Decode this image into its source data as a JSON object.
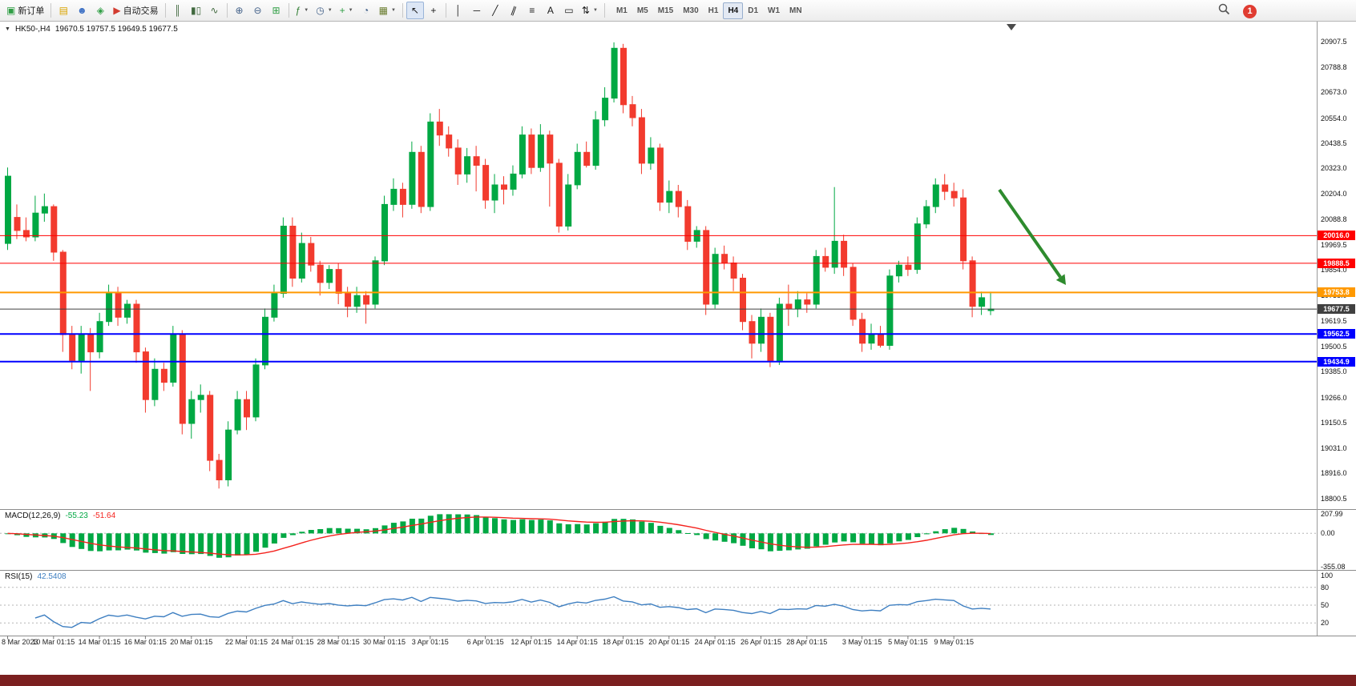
{
  "toolbar": {
    "notification_count": "1",
    "timeframes": [
      "M1",
      "M5",
      "M15",
      "M30",
      "H1",
      "H4",
      "D1",
      "W1",
      "MN"
    ],
    "active_timeframe": "H4",
    "buttons": [
      {
        "name": "new-order",
        "glyph": "▣",
        "color": "#2f9e44",
        "label": "新订单"
      },
      {
        "sep": true
      },
      {
        "name": "charts-profile",
        "glyph": "▤",
        "color": "#d9a400"
      },
      {
        "name": "market-watch",
        "glyph": "☻",
        "color": "#3b6fc4"
      },
      {
        "name": "navigator",
        "glyph": "◈",
        "color": "#2f9e44"
      },
      {
        "name": "autotrading",
        "glyph": "▶",
        "color": "#d23b2f",
        "label": "自动交易"
      },
      {
        "sep": true
      },
      {
        "name": "bar-chart",
        "glyph": "║",
        "color": "#41693f"
      },
      {
        "name": "candlestick-chart",
        "glyph": "▮▯",
        "color": "#41693f"
      },
      {
        "name": "line-chart",
        "glyph": "∿",
        "color": "#41693f"
      },
      {
        "sep": true
      },
      {
        "name": "zoom-in",
        "glyph": "⊕",
        "color": "#44628a"
      },
      {
        "name": "zoom-out",
        "glyph": "⊖",
        "color": "#44628a"
      },
      {
        "name": "tile-windows",
        "glyph": "⊞",
        "color": "#2f9e44"
      },
      {
        "sep": true
      },
      {
        "name": "indicators",
        "glyph": "ƒ",
        "color": "#2f7d32",
        "caret": true
      },
      {
        "name": "periods",
        "glyph": "◷",
        "color": "#44628a",
        "caret": true
      },
      {
        "name": "add-object",
        "glyph": "+",
        "color": "#2f9e44",
        "caret": true
      },
      {
        "name": "history-center",
        "glyph": "◔",
        "color": "#44628a"
      },
      {
        "name": "templates",
        "glyph": "▦",
        "color": "#6a7d2f",
        "caret": true
      },
      {
        "sep": true
      },
      {
        "name": "cursor",
        "glyph": "↖",
        "color": "#1a1a1a",
        "active": true
      },
      {
        "name": "crosshair",
        "glyph": "+",
        "color": "#1a1a1a"
      },
      {
        "sep": true
      },
      {
        "name": "vertical-line",
        "glyph": "│",
        "color": "#1a1a1a"
      },
      {
        "name": "horizontal-line",
        "glyph": "─",
        "color": "#1a1a1a"
      },
      {
        "name": "trendline",
        "glyph": "╱",
        "color": "#1a1a1a"
      },
      {
        "name": "equidistant-channel",
        "glyph": "∥",
        "color": "#1a1a1a",
        "rotate": 20
      },
      {
        "name": "fibonacci",
        "glyph": "≡",
        "color": "#1a1a1a"
      },
      {
        "name": "text",
        "glyph": "A",
        "color": "#1a1a1a"
      },
      {
        "name": "text-label",
        "glyph": "▭",
        "color": "#1a1a1a"
      },
      {
        "name": "arrows",
        "glyph": "⇅",
        "color": "#1a1a1a",
        "caret": true
      },
      {
        "sep": true
      }
    ]
  },
  "chart_data": [
    {
      "type": "candlestick",
      "title": "HK50-,H4",
      "collapse_glyph": "▼",
      "ohlc_text": "19670.5 19757.5 19649.5 19677.5",
      "ylim": [
        18770,
        20940
      ],
      "up_color": "#00a843",
      "down_color": "#f23b2e",
      "price_ticks": [
        "20907.5",
        "20788.8",
        "20673.0",
        "20554.0",
        "20438.5",
        "20323.0",
        "20204.0",
        "20088.8",
        "19969.5",
        "19854.0",
        "19738.0",
        "19619.5",
        "19500.5",
        "19385.0",
        "19266.0",
        "19150.5",
        "19031.0",
        "18916.0",
        "18800.5"
      ],
      "level_lines": [
        {
          "price": 20016.0,
          "label": "20016.0",
          "color": "#ff0000",
          "width": 1
        },
        {
          "price": 19888.5,
          "label": "19888.5",
          "color": "#ff0000",
          "width": 1
        },
        {
          "price": 19753.8,
          "label": "19753.8",
          "color": "#ff9900",
          "width": 2
        },
        {
          "price": 19677.5,
          "label": "19677.5",
          "color": "#404040",
          "width": 1,
          "current": true
        },
        {
          "price": 19562.5,
          "label": "19562.5",
          "color": "#0000ff",
          "width": 2
        },
        {
          "price": 19434.9,
          "label": "19434.9",
          "color": "#0000ff",
          "width": 2
        }
      ],
      "annotation_arrow": {
        "color": "#2e8b2e",
        "direction": "down-right"
      },
      "candles": [
        [
          19980,
          20330,
          19950,
          20290
        ],
        [
          20100,
          20160,
          20000,
          20040
        ],
        [
          20040,
          20100,
          19990,
          20010
        ],
        [
          20010,
          20200,
          19990,
          20120
        ],
        [
          20120,
          20210,
          20080,
          20150
        ],
        [
          20150,
          20160,
          19900,
          19940
        ],
        [
          19940,
          19950,
          19480,
          19560
        ],
        [
          19560,
          19600,
          19400,
          19440
        ],
        [
          19440,
          19600,
          19380,
          19560
        ],
        [
          19560,
          19590,
          19300,
          19480
        ],
        [
          19480,
          19660,
          19450,
          19620
        ],
        [
          19620,
          19790,
          19600,
          19750
        ],
        [
          19750,
          19780,
          19600,
          19640
        ],
        [
          19640,
          19720,
          19610,
          19700
        ],
        [
          19700,
          19720,
          19430,
          19480
        ],
        [
          19480,
          19500,
          19200,
          19260
        ],
        [
          19260,
          19450,
          19230,
          19400
        ],
        [
          19400,
          19430,
          19300,
          19340
        ],
        [
          19340,
          19600,
          19320,
          19560
        ],
        [
          19560,
          19580,
          19100,
          19150
        ],
        [
          19150,
          19300,
          19080,
          19260
        ],
        [
          19260,
          19330,
          19200,
          19280
        ],
        [
          19280,
          19300,
          18930,
          18980
        ],
        [
          18980,
          19010,
          18850,
          18890
        ],
        [
          18890,
          19160,
          18860,
          19120
        ],
        [
          19120,
          19300,
          19100,
          19260
        ],
        [
          19260,
          19300,
          19120,
          19180
        ],
        [
          19180,
          19450,
          19160,
          19420
        ],
        [
          19420,
          19680,
          19400,
          19640
        ],
        [
          19640,
          19790,
          19620,
          19750
        ],
        [
          19750,
          20100,
          19730,
          20060
        ],
        [
          20060,
          20100,
          19780,
          19820
        ],
        [
          19820,
          20030,
          19800,
          19980
        ],
        [
          19980,
          20010,
          19850,
          19880
        ],
        [
          19880,
          19900,
          19740,
          19800
        ],
        [
          19800,
          19880,
          19770,
          19860
        ],
        [
          19860,
          19890,
          19700,
          19750
        ],
        [
          19750,
          19780,
          19640,
          19690
        ],
        [
          19690,
          19780,
          19660,
          19740
        ],
        [
          19740,
          19760,
          19610,
          19700
        ],
        [
          19700,
          19920,
          19680,
          19900
        ],
        [
          19900,
          20200,
          19880,
          20160
        ],
        [
          20160,
          20280,
          20130,
          20230
        ],
        [
          20230,
          20260,
          20100,
          20160
        ],
        [
          20160,
          20450,
          20140,
          20400
        ],
        [
          20400,
          20430,
          20120,
          20150
        ],
        [
          20150,
          20580,
          20130,
          20540
        ],
        [
          20540,
          20600,
          20430,
          20480
        ],
        [
          20480,
          20520,
          20380,
          20420
        ],
        [
          20420,
          20460,
          20250,
          20300
        ],
        [
          20300,
          20420,
          20260,
          20380
        ],
        [
          20380,
          20430,
          20220,
          20340
        ],
        [
          20340,
          20370,
          20140,
          20180
        ],
        [
          20180,
          20300,
          20120,
          20250
        ],
        [
          20250,
          20290,
          20160,
          20230
        ],
        [
          20230,
          20340,
          20200,
          20300
        ],
        [
          20300,
          20520,
          20280,
          20480
        ],
        [
          20480,
          20510,
          20300,
          20330
        ],
        [
          20330,
          20530,
          20310,
          20480
        ],
        [
          20480,
          20500,
          20150,
          20350
        ],
        [
          20350,
          20370,
          20030,
          20060
        ],
        [
          20060,
          20300,
          20040,
          20250
        ],
        [
          20250,
          20440,
          20230,
          20400
        ],
        [
          20400,
          20450,
          20330,
          20340
        ],
        [
          20340,
          20590,
          20320,
          20550
        ],
        [
          20550,
          20700,
          20520,
          20650
        ],
        [
          20650,
          20907,
          20630,
          20880
        ],
        [
          20880,
          20900,
          20580,
          20620
        ],
        [
          20620,
          20660,
          20520,
          20560
        ],
        [
          20560,
          20600,
          20300,
          20350
        ],
        [
          20350,
          20470,
          20320,
          20420
        ],
        [
          20420,
          20440,
          20130,
          20170
        ],
        [
          20170,
          20270,
          20120,
          20220
        ],
        [
          20220,
          20250,
          20100,
          20150
        ],
        [
          20150,
          20180,
          19950,
          19990
        ],
        [
          19990,
          20060,
          19960,
          20040
        ],
        [
          20040,
          20060,
          19650,
          19700
        ],
        [
          19700,
          19960,
          19680,
          19930
        ],
        [
          19930,
          19970,
          19860,
          19890
        ],
        [
          19890,
          19920,
          19760,
          19820
        ],
        [
          19820,
          19840,
          19580,
          19620
        ],
        [
          19620,
          19650,
          19450,
          19520
        ],
        [
          19520,
          19680,
          19480,
          19640
        ],
        [
          19640,
          19660,
          19410,
          19440
        ],
        [
          19440,
          19730,
          19420,
          19700
        ],
        [
          19700,
          19790,
          19600,
          19680
        ],
        [
          19680,
          19760,
          19640,
          19720
        ],
        [
          19720,
          19750,
          19660,
          19700
        ],
        [
          19700,
          19950,
          19680,
          19920
        ],
        [
          19920,
          19960,
          19850,
          19870
        ],
        [
          19870,
          20240,
          19840,
          19990
        ],
        [
          19990,
          20020,
          19830,
          19870
        ],
        [
          19870,
          19890,
          19600,
          19630
        ],
        [
          19630,
          19660,
          19480,
          19520
        ],
        [
          19520,
          19610,
          19490,
          19560
        ],
        [
          19560,
          19600,
          19500,
          19510
        ],
        [
          19510,
          19860,
          19490,
          19830
        ],
        [
          19830,
          19900,
          19800,
          19880
        ],
        [
          19880,
          19920,
          19830,
          19860
        ],
        [
          19860,
          20100,
          19840,
          20070
        ],
        [
          20070,
          20180,
          20050,
          20150
        ],
        [
          20150,
          20280,
          20120,
          20250
        ],
        [
          20250,
          20300,
          20180,
          20220
        ],
        [
          20220,
          20260,
          20150,
          20190
        ],
        [
          20190,
          20230,
          19860,
          19900
        ],
        [
          19900,
          19920,
          19640,
          19690
        ],
        [
          19690,
          19758,
          19650,
          19730
        ],
        [
          19670.5,
          19757.5,
          19649.5,
          19677.5
        ]
      ],
      "time_labels": [
        {
          "text": "8 Mar 2023",
          "i": 0
        },
        {
          "text": "10 Mar 01:15",
          "i": 5
        },
        {
          "text": "14 Mar 01:15",
          "i": 10
        },
        {
          "text": "16 Mar 01:15",
          "i": 15
        },
        {
          "text": "20 Mar 01:15",
          "i": 20
        },
        {
          "text": "22 Mar 01:15",
          "i": 26
        },
        {
          "text": "24 Mar 01:15",
          "i": 31
        },
        {
          "text": "28 Mar 01:15",
          "i": 36
        },
        {
          "text": "30 Mar 01:15",
          "i": 41
        },
        {
          "text": "3 Apr 01:15",
          "i": 46
        },
        {
          "text": "6 Apr 01:15",
          "i": 52
        },
        {
          "text": "12 Apr 01:15",
          "i": 57
        },
        {
          "text": "14 Apr 01:15",
          "i": 62
        },
        {
          "text": "18 Apr 01:15",
          "i": 67
        },
        {
          "text": "20 Apr 01:15",
          "i": 72
        },
        {
          "text": "24 Apr 01:15",
          "i": 77
        },
        {
          "text": "26 Apr 01:15",
          "i": 82
        },
        {
          "text": "28 Apr 01:15",
          "i": 87
        },
        {
          "text": "3 May 01:15",
          "i": 93
        },
        {
          "text": "5 May 01:15",
          "i": 98
        },
        {
          "text": "9 May 01:15",
          "i": 103
        }
      ]
    },
    {
      "type": "bar",
      "label": "MACD(12,26,9)",
      "value_main": "-55.23",
      "value_signal": "-51.64",
      "params": [
        12,
        26,
        9
      ],
      "scale_ticks": [
        "207.99",
        "0.00",
        "-355.08"
      ],
      "ylim": [
        -355.08,
        207.99
      ],
      "histogram_color": "#00a843",
      "signal_color": "#f4221d",
      "derived_from": "closes of chart_data[0].candles"
    },
    {
      "type": "line",
      "label": "RSI(15)",
      "value": "42.5408",
      "period": 15,
      "scale_ticks": [
        "100",
        "80",
        "50",
        "20"
      ],
      "levels": [
        80,
        50,
        20
      ],
      "ylim": [
        0,
        100
      ],
      "line_color": "#3e7fc1",
      "derived_from": "closes of chart_data[0].candles"
    }
  ]
}
